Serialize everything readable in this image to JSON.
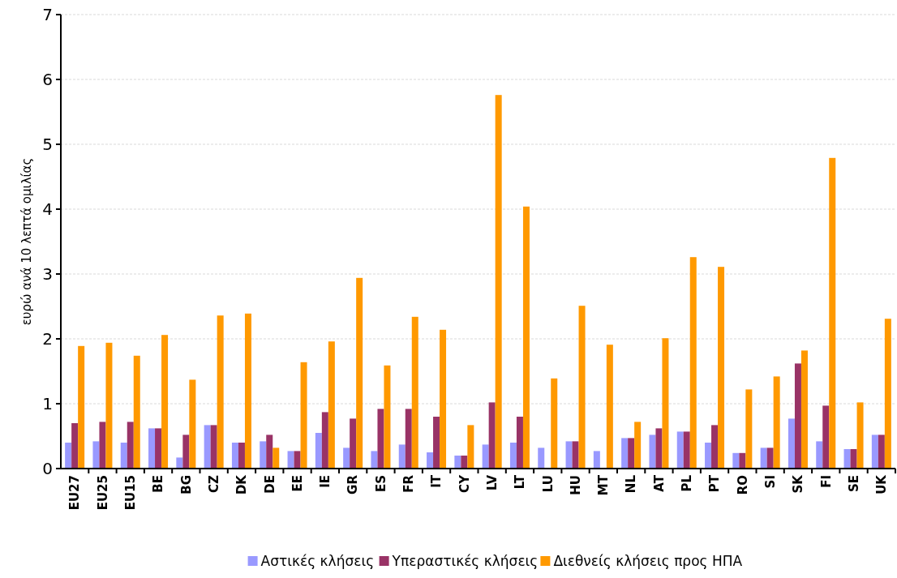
{
  "chart_data": {
    "type": "bar",
    "ylabel": "ευρώ ανά 10 λεπτά ομιλίας",
    "categories": [
      "EU27",
      "EU25",
      "EU15",
      "BE",
      "BG",
      "CZ",
      "DK",
      "DE",
      "EE",
      "IE",
      "GR",
      "ES",
      "FR",
      "IT",
      "CY",
      "LV",
      "LT",
      "LU",
      "HU",
      "MT",
      "NL",
      "AT",
      "PL",
      "PT",
      "RO",
      "SI",
      "SK",
      "FI",
      "SE",
      "UK"
    ],
    "series": [
      {
        "name": "Αστικές κλήσεις",
        "color": "#9999ff",
        "values": [
          0.4,
          0.42,
          0.4,
          0.62,
          0.17,
          0.67,
          0.4,
          0.42,
          0.27,
          0.55,
          0.32,
          0.27,
          0.37,
          0.25,
          0.2,
          0.37,
          0.4,
          0.32,
          0.42,
          0.27,
          0.47,
          0.52,
          0.57,
          0.4,
          0.24,
          0.32,
          0.77,
          0.42,
          0.3,
          0.52
        ]
      },
      {
        "name": "Υπεραστικές κλήσεις",
        "color": "#993366",
        "values": [
          0.7,
          0.72,
          0.72,
          0.62,
          0.52,
          0.67,
          0.4,
          0.52,
          0.27,
          0.87,
          0.77,
          0.92,
          0.92,
          0.8,
          0.2,
          1.02,
          0.8,
          null,
          0.42,
          null,
          0.47,
          0.62,
          0.57,
          0.67,
          0.24,
          0.32,
          1.62,
          0.97,
          0.3,
          0.52
        ]
      },
      {
        "name": "Διεθνείς κλήσεις προς ΗΠΑ",
        "color": "#ff9900",
        "values": [
          1.89,
          1.94,
          1.74,
          2.06,
          1.37,
          2.36,
          2.39,
          0.32,
          1.64,
          1.96,
          2.94,
          1.59,
          2.34,
          2.14,
          0.67,
          5.76,
          4.04,
          1.39,
          2.51,
          1.91,
          0.72,
          2.01,
          3.26,
          3.11,
          1.22,
          1.42,
          1.82,
          4.79,
          1.02,
          2.31
        ]
      }
    ],
    "ylim": [
      0,
      7
    ],
    "yticks": [
      0,
      1,
      2,
      3,
      4,
      5,
      6,
      7
    ],
    "grid": "y",
    "legend": "bottom"
  }
}
